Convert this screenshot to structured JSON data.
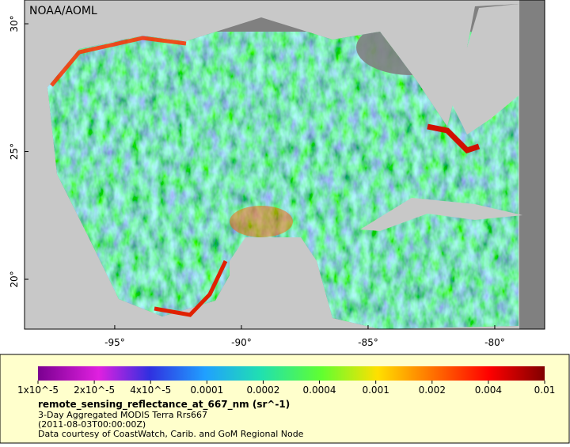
{
  "map": {
    "credit": "NOAA/AOML",
    "xlim": [
      -98.56,
      -78.03
    ],
    "ylim": [
      18.05,
      30.93
    ],
    "xticks": [
      {
        "value": -95,
        "label": "-95°"
      },
      {
        "value": -90,
        "label": "-90°"
      },
      {
        "value": -85,
        "label": "-85°"
      },
      {
        "value": -80,
        "label": "-80°"
      }
    ],
    "yticks": [
      {
        "value": 20,
        "label": "20°"
      },
      {
        "value": 25,
        "label": "25°"
      },
      {
        "value": 30,
        "label": "30°"
      }
    ]
  },
  "colorbar": {
    "ticks": [
      {
        "value": 1e-05,
        "label": "1x10^-5"
      },
      {
        "value": 2e-05,
        "label": "2x10^-5"
      },
      {
        "value": 4e-05,
        "label": "4x10^-5"
      },
      {
        "value": 0.0001,
        "label": "0.0001"
      },
      {
        "value": 0.0002,
        "label": "0.0002"
      },
      {
        "value": 0.0004,
        "label": "0.0004"
      },
      {
        "value": 0.001,
        "label": "0.001"
      },
      {
        "value": 0.002,
        "label": "0.002"
      },
      {
        "value": 0.004,
        "label": "0.004"
      },
      {
        "value": 0.01,
        "label": "0.01"
      }
    ],
    "title": "remote_sensing_reflectance_at_667_nm (sr^-1)",
    "lines": [
      "3-Day Aggregated MODIS Terra Rrs667",
      "(2011-08-03T00:00:00Z)",
      "Data courtesy of CoastWatch, Carib. and GoM Regional Node"
    ]
  }
}
